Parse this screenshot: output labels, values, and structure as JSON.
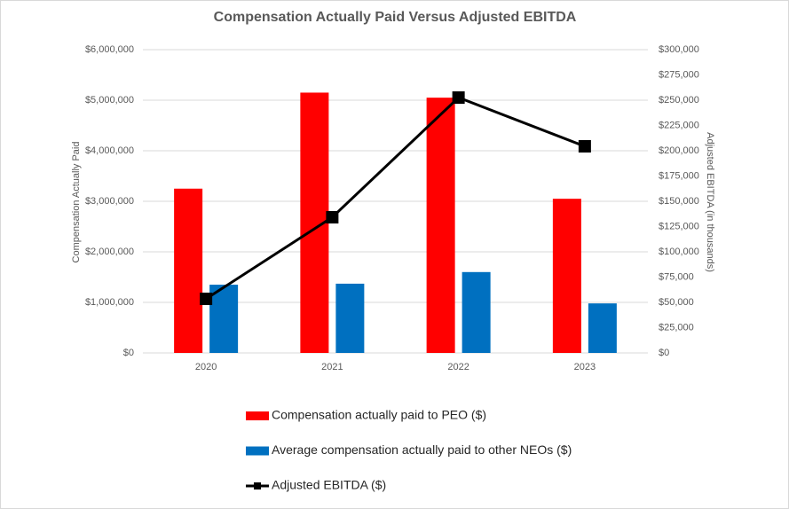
{
  "chart_data": {
    "type": "bar",
    "title": "Compensation Actually Paid Versus Adjusted EBITDA",
    "ylabel": "Compensation Actually Paid",
    "y2label": "Adjusted EBITDA (in thousands)",
    "categories": [
      "2020",
      "2021",
      "2022",
      "2023"
    ],
    "series": [
      {
        "name": "Compensation actually paid to PEO ($)",
        "color": "#ff0000",
        "type": "bar",
        "values": [
          3250000,
          5150000,
          5050000,
          3050000
        ]
      },
      {
        "name": "Average compensation actually paid to other NEOs ($)",
        "color": "#0070c0",
        "type": "bar",
        "values": [
          1350000,
          1370000,
          1600000,
          980000
        ]
      },
      {
        "name": "Adjusted EBITDA ($)",
        "color": "#000000",
        "type": "line",
        "axis": "y2",
        "values": [
          53500,
          134200,
          252600,
          204400
        ]
      }
    ],
    "ylim": [
      0,
      6000000
    ],
    "yticks": [
      {
        "value": 0,
        "label": "$0"
      },
      {
        "value": 1000000,
        "label": "$1,000,000"
      },
      {
        "value": 2000000,
        "label": "$2,000,000"
      },
      {
        "value": 3000000,
        "label": "$3,000,000"
      },
      {
        "value": 4000000,
        "label": "$4,000,000"
      },
      {
        "value": 5000000,
        "label": "$5,000,000"
      },
      {
        "value": 6000000,
        "label": "$6,000,000"
      }
    ],
    "y2lim": [
      0,
      300000
    ],
    "y2ticks": [
      {
        "value": 0,
        "label": "$0"
      },
      {
        "value": 25000,
        "label": "$25,000"
      },
      {
        "value": 50000,
        "label": "$50,000"
      },
      {
        "value": 75000,
        "label": "$75,000"
      },
      {
        "value": 100000,
        "label": "$100,000"
      },
      {
        "value": 125000,
        "label": "$125,000"
      },
      {
        "value": 150000,
        "label": "$150,000"
      },
      {
        "value": 175000,
        "label": "$175,000"
      },
      {
        "value": 200000,
        "label": "$200,000"
      },
      {
        "value": 225000,
        "label": "$225,000"
      },
      {
        "value": 250000,
        "label": "$250,000"
      },
      {
        "value": 275000,
        "label": "$275,000"
      },
      {
        "value": 300000,
        "label": "$300,000"
      }
    ],
    "grid": true,
    "legend": "bottom"
  }
}
